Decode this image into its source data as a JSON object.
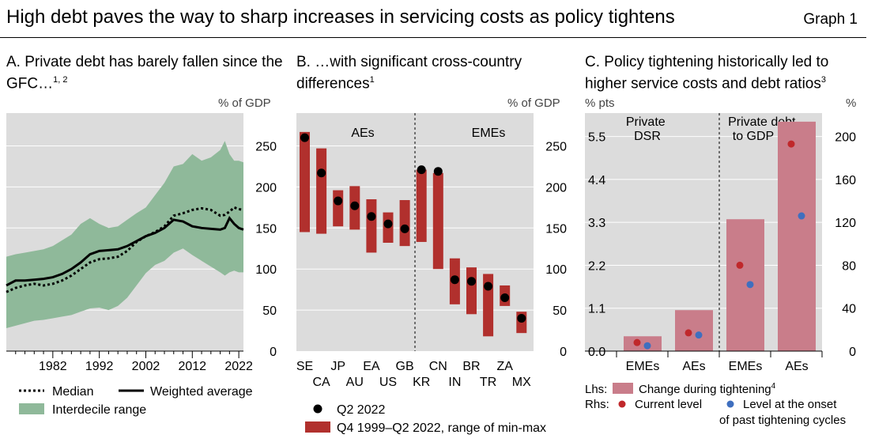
{
  "header": {
    "title": "High debt paves the way to sharp increases in servicing costs as policy tightens",
    "graph": "Graph 1"
  },
  "colors": {
    "plot_bg": "#dcdcdc",
    "band": "#8fb99a",
    "bar_red": "#b1302d",
    "bar_pink": "#c97d8a",
    "dot_red": "#c0282b",
    "dot_blue": "#3f6fbf"
  },
  "panelA": {
    "title_text": "A. Private debt has barely fallen since the GFC…",
    "title_sup": "1, 2",
    "unit": "% of GDP",
    "legend": {
      "median": "Median",
      "weighted": "Weighted average",
      "range": "Interdecile range"
    }
  },
  "panelB": {
    "title_line1": "B.  …with significant cross-country",
    "title_line2": "differences",
    "title_sup": "1",
    "unit": "% of GDP",
    "group_labels": [
      "AEs",
      "EMEs"
    ],
    "legend": {
      "dot": "Q2 2022",
      "bar": "Q4 1999–Q2 2022, range of min-max"
    }
  },
  "panelC": {
    "title_text": "C. Policy tightening historically led to higher service costs and debt ratios",
    "title_sup": "3",
    "unit_left": "% pts",
    "unit_right": "%",
    "section_labels": [
      "Private DSR",
      "Private debt to GDP"
    ],
    "legend": {
      "lhs": "Lhs:",
      "rhs": "Rhs:",
      "bar": "Change during tightening",
      "bar_sup": "4",
      "current": "Current level",
      "onset_line1": "Level at the onset",
      "onset_line2": "of past tightening cycles"
    }
  },
  "chart_data": [
    {
      "id": "A",
      "type": "area",
      "title": "A. Private debt has barely fallen since the GFC…",
      "ylabel": "% of GDP",
      "ylim": [
        0,
        290
      ],
      "yticks": [
        0,
        50,
        100,
        150,
        200,
        250
      ],
      "xlim": [
        1972,
        2023
      ],
      "xticks": [
        1982,
        1992,
        2002,
        2012,
        2022
      ],
      "x": [
        1972,
        1974,
        1976,
        1978,
        1980,
        1982,
        1984,
        1986,
        1988,
        1990,
        1992,
        1994,
        1996,
        1998,
        2000,
        2002,
        2004,
        2006,
        2008,
        2010,
        2012,
        2014,
        2016,
        2018,
        2019,
        2020,
        2021,
        2022,
        2023
      ],
      "series": [
        {
          "name": "Median",
          "values": [
            72,
            77,
            80,
            82,
            80,
            82,
            86,
            92,
            100,
            108,
            112,
            113,
            115,
            122,
            133,
            140,
            145,
            152,
            165,
            168,
            172,
            174,
            172,
            165,
            166,
            170,
            175,
            173,
            172
          ]
        },
        {
          "name": "Weighted average",
          "values": [
            80,
            86,
            86,
            87,
            88,
            90,
            94,
            100,
            108,
            118,
            122,
            123,
            124,
            128,
            134,
            140,
            144,
            150,
            160,
            158,
            152,
            150,
            149,
            148,
            150,
            162,
            155,
            150,
            148
          ]
        },
        {
          "name": "Interdecile range",
          "low": [
            28,
            31,
            34,
            37,
            38,
            40,
            42,
            44,
            48,
            52,
            53,
            50,
            55,
            65,
            80,
            95,
            105,
            110,
            120,
            125,
            117,
            110,
            103,
            96,
            92,
            96,
            98,
            96,
            96
          ],
          "high": [
            115,
            118,
            120,
            122,
            124,
            128,
            135,
            142,
            155,
            162,
            155,
            150,
            152,
            160,
            168,
            175,
            190,
            205,
            225,
            228,
            240,
            232,
            236,
            245,
            256,
            240,
            232,
            232,
            230
          ]
        }
      ]
    },
    {
      "id": "B",
      "type": "bar",
      "title": "B. …with significant cross-country differences",
      "ylabel": "% of GDP",
      "ylim": [
        0,
        290
      ],
      "yticks": [
        0,
        50,
        100,
        150,
        200,
        250
      ],
      "categories": [
        "SE",
        "CA",
        "JP",
        "AU",
        "EA",
        "US",
        "GB",
        "KR",
        "CN",
        "IN",
        "BR",
        "TR",
        "ZA",
        "MX"
      ],
      "groups": {
        "AEs": [
          "SE",
          "CA",
          "JP",
          "AU",
          "EA",
          "US",
          "GB"
        ],
        "EMEs": [
          "KR",
          "CN",
          "IN",
          "BR",
          "TR",
          "ZA",
          "MX"
        ]
      },
      "series": [
        {
          "name": "Q4 1999–Q2 2022, range of min-max",
          "low": [
            145,
            143,
            152,
            148,
            120,
            132,
            128,
            133,
            100,
            57,
            45,
            18,
            55,
            22
          ],
          "high": [
            267,
            247,
            196,
            201,
            185,
            169,
            184,
            221,
            217,
            113,
            102,
            94,
            80,
            48
          ]
        },
        {
          "name": "Q2 2022",
          "values": [
            260,
            217,
            183,
            177,
            164,
            155,
            149,
            221,
            219,
            87,
            85,
            79,
            65,
            40
          ]
        }
      ]
    },
    {
      "id": "C",
      "type": "bar",
      "title": "C. Policy tightening historically led to higher service costs and debt ratios",
      "ylabel_left": "% pts",
      "ylabel_right": "%",
      "ylim_left": [
        0,
        6.1
      ],
      "yticks_left": [
        0.0,
        1.1,
        2.2,
        3.3,
        4.4,
        5.5
      ],
      "ylim_right": [
        0,
        221.8
      ],
      "yticks_right": [
        0,
        40,
        80,
        120,
        160,
        200
      ],
      "categories": [
        "EMEs",
        "AEs",
        "EMEs",
        "AEs"
      ],
      "sections": {
        "Private DSR": [
          "EMEs",
          "AEs"
        ],
        "Private debt to GDP": [
          "EMEs",
          "AEs"
        ]
      },
      "series": [
        {
          "name": "Change during tightening",
          "axis": "left",
          "values": [
            0.38,
            1.05,
            3.38,
            5.88
          ]
        },
        {
          "name": "Current level",
          "axis": "right",
          "values": [
            0,
            0,
            0,
            0
          ],
          "display": [
            8,
            17,
            80,
            193
          ]
        },
        {
          "name": "Level at the onset of past tightening cycles",
          "axis": "right",
          "values": [
            0,
            0,
            0,
            0
          ],
          "display": [
            5,
            15,
            62,
            126
          ]
        }
      ]
    }
  ]
}
